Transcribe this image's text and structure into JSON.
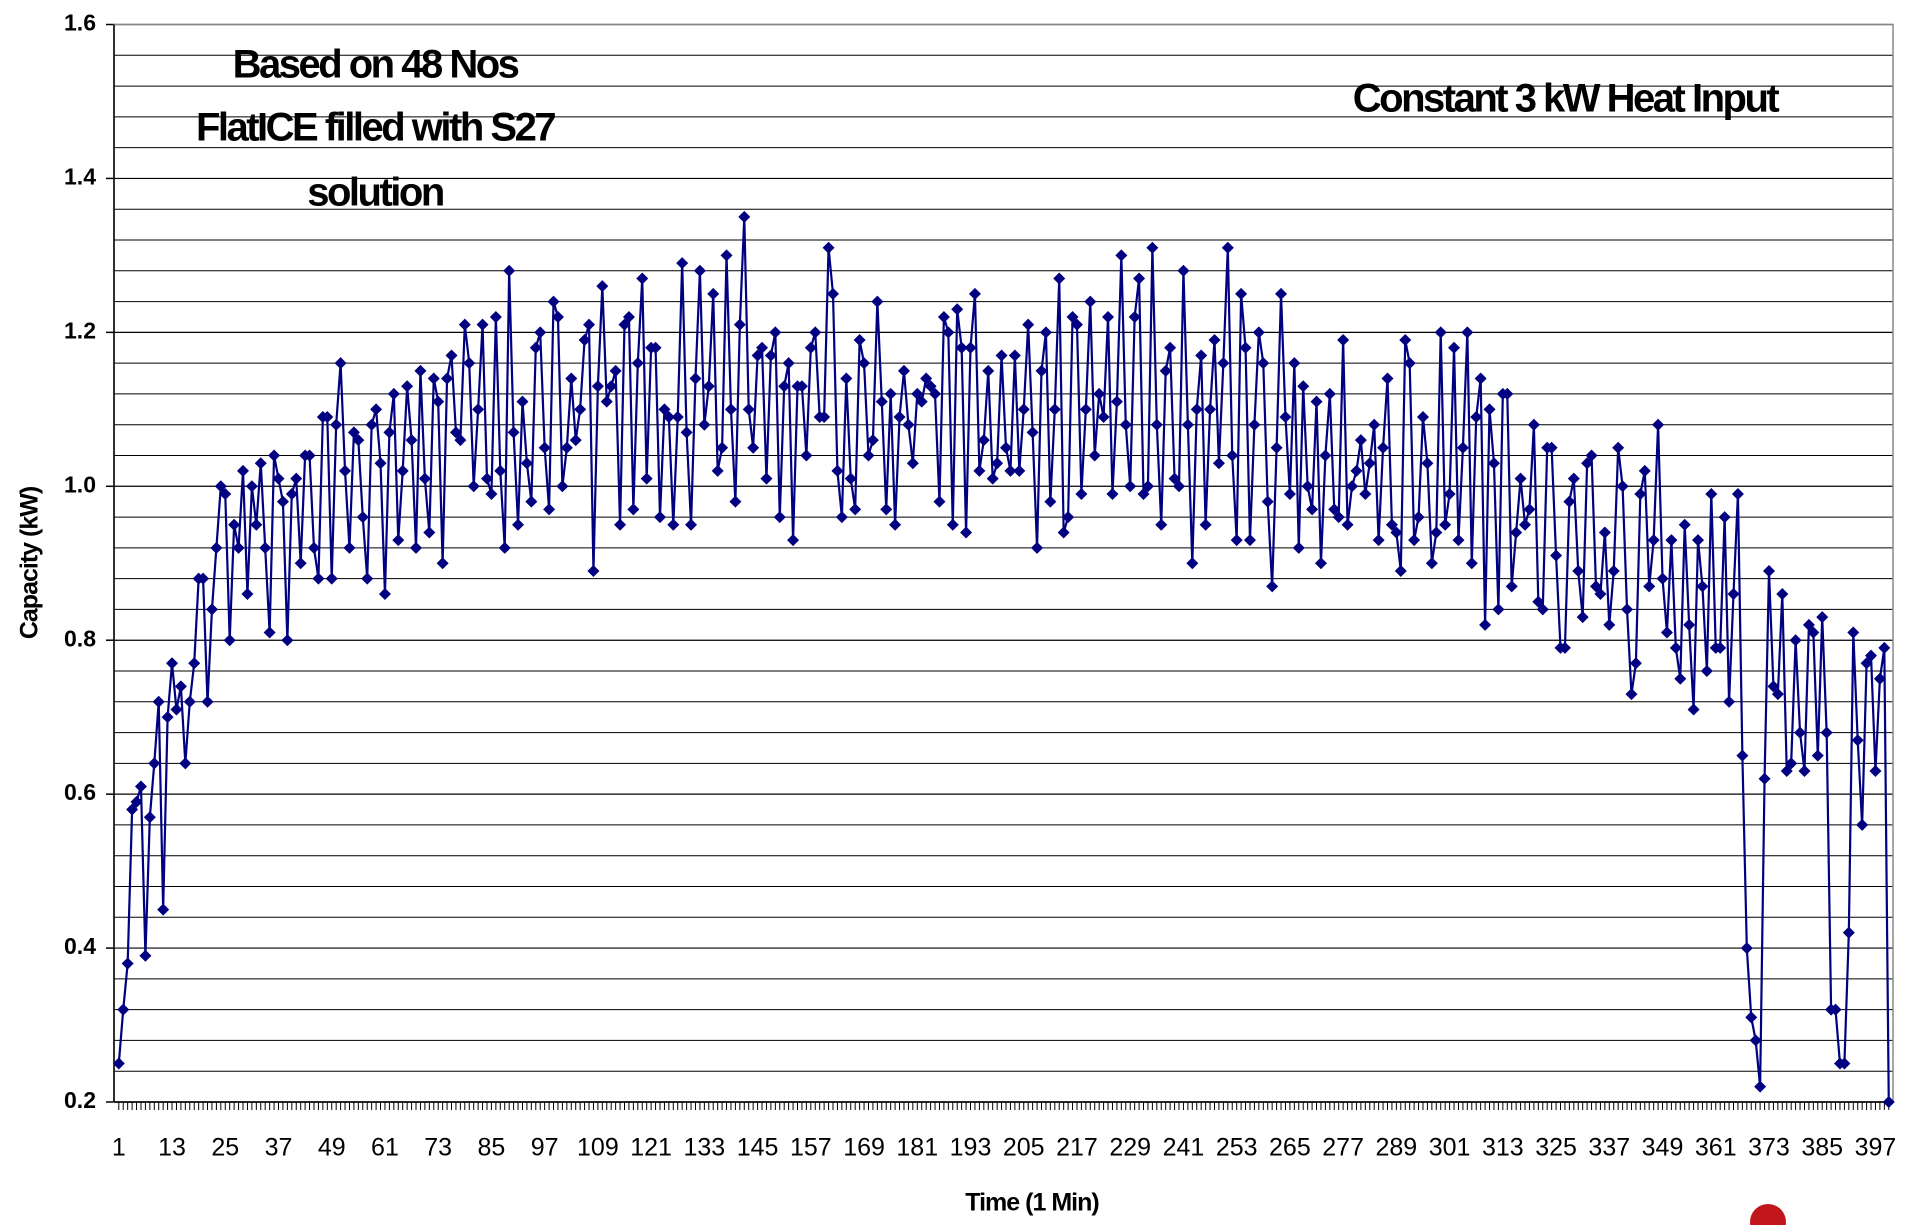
{
  "chart_data": {
    "type": "line",
    "annotations": [
      "Based on 48 Nos",
      "FlatICE filled with S27",
      "solution",
      "Constant 3 kW Heat Input"
    ],
    "x_label": "Time (1 Min)",
    "y_label": "Capacity (kW)",
    "ylim": [
      0.2,
      1.6
    ],
    "yticks": [
      0.2,
      0.4,
      0.6,
      0.8,
      {
        "value": 1,
        "label": "1.0"
      },
      1.2,
      1.4,
      1.6
    ],
    "minor_yticks": [
      0.24,
      0.28,
      0.32,
      0.36,
      0.44,
      0.48,
      0.52,
      0.56,
      0.64,
      0.68,
      0.72,
      0.76,
      0.84,
      0.88,
      0.92,
      0.96,
      1.04,
      1.08,
      1.12,
      1.16,
      1.24,
      1.28,
      1.32,
      1.36,
      1.44,
      1.48,
      1.52,
      1.56
    ],
    "grid": true,
    "categories": [
      1,
      null,
      null,
      null,
      null,
      null,
      null,
      null,
      null,
      null,
      null,
      null,
      13,
      null,
      null,
      null,
      null,
      null,
      null,
      null,
      null,
      null,
      null,
      null,
      25,
      null,
      null,
      null,
      null,
      null,
      null,
      null,
      null,
      null,
      null,
      null,
      37,
      null,
      null,
      null,
      null,
      null,
      null,
      null,
      null,
      null,
      null,
      null,
      49,
      null,
      null,
      null,
      null,
      null,
      null,
      null,
      null,
      null,
      null,
      null,
      61,
      null,
      null,
      null,
      null,
      null,
      null,
      null,
      null,
      null,
      null,
      null,
      73,
      null,
      null,
      null,
      null,
      null,
      null,
      null,
      null,
      null,
      null,
      null,
      85,
      null,
      null,
      null,
      null,
      null,
      null,
      null,
      null,
      null,
      null,
      null,
      97,
      null,
      null,
      null,
      null,
      null,
      null,
      null,
      null,
      null,
      null,
      null,
      109,
      null,
      null,
      null,
      null,
      null,
      null,
      null,
      null,
      null,
      null,
      null,
      121,
      null,
      null,
      null,
      null,
      null,
      null,
      null,
      null,
      null,
      null,
      null,
      133,
      null,
      null,
      null,
      null,
      null,
      null,
      null,
      null,
      null,
      null,
      null,
      145,
      null,
      null,
      null,
      null,
      null,
      null,
      null,
      null,
      null,
      null,
      null,
      157,
      null,
      null,
      null,
      null,
      null,
      null,
      null,
      null,
      null,
      null,
      null,
      169,
      null,
      null,
      null,
      null,
      null,
      null,
      null,
      null,
      null,
      null,
      null,
      181,
      null,
      null,
      null,
      null,
      null,
      null,
      null,
      null,
      null,
      null,
      null,
      193,
      null,
      null,
      null,
      null,
      null,
      null,
      null,
      null,
      null,
      null,
      null,
      205,
      null,
      null,
      null,
      null,
      null,
      null,
      null,
      null,
      null,
      null,
      null,
      217,
      null,
      null,
      null,
      null,
      null,
      null,
      null,
      null,
      null,
      null,
      null,
      229,
      null,
      null,
      null,
      null,
      null,
      null,
      null,
      null,
      null,
      null,
      null,
      241,
      null,
      null,
      null,
      null,
      null,
      null,
      null,
      null,
      null,
      null,
      null,
      253,
      null,
      null,
      null,
      null,
      null,
      null,
      null,
      null,
      null,
      null,
      null,
      265,
      null,
      null,
      null,
      null,
      null,
      null,
      null,
      null,
      null,
      null,
      null,
      277,
      null,
      null,
      null,
      null,
      null,
      null,
      null,
      null,
      null,
      null,
      null,
      289,
      null,
      null,
      null,
      null,
      null,
      null,
      null,
      null,
      null,
      null,
      null,
      301,
      null,
      null,
      null,
      null,
      null,
      null,
      null,
      null,
      null,
      null,
      null,
      313,
      null,
      null,
      null,
      null,
      null,
      null,
      null,
      null,
      null,
      null,
      null,
      325,
      null,
      null,
      null,
      null,
      null,
      null,
      null,
      null,
      null,
      null,
      null,
      337,
      null,
      null,
      null,
      null,
      null,
      null,
      null,
      null,
      null,
      null,
      null,
      349,
      null,
      null,
      null,
      null,
      null,
      null,
      null,
      null,
      null,
      null,
      null,
      361,
      null,
      null,
      null,
      null,
      null,
      null,
      null,
      null,
      null,
      null,
      null,
      373,
      null,
      null,
      null,
      null,
      null,
      null,
      null,
      null,
      null,
      null,
      null,
      385,
      null,
      null,
      null,
      null,
      null,
      null,
      null,
      null,
      null,
      null,
      null,
      397,
      null,
      null,
      null
    ],
    "series": [
      {
        "color": "#000080",
        "values": [
          0.25,
          0.32,
          0.38,
          0.58,
          0.59,
          0.61,
          0.39,
          0.57,
          0.64,
          0.72,
          0.45,
          0.7,
          0.77,
          0.71,
          0.74,
          0.64,
          0.72,
          0.77,
          0.88,
          0.88,
          0.72,
          0.84,
          0.92,
          1.0,
          0.99,
          0.8,
          0.95,
          0.92,
          1.02,
          0.86,
          1.0,
          0.95,
          1.03,
          0.92,
          0.81,
          1.04,
          1.01,
          0.98,
          0.8,
          0.99,
          1.01,
          0.9,
          1.04,
          1.04,
          0.92,
          0.88,
          1.09,
          1.09,
          0.88,
          1.08,
          1.16,
          1.02,
          0.92,
          1.07,
          1.06,
          0.96,
          0.88,
          1.08,
          1.1,
          1.03,
          0.86,
          1.07,
          1.12,
          0.93,
          1.02,
          1.13,
          1.06,
          0.92,
          1.15,
          1.01,
          0.94,
          1.14,
          1.11,
          0.9,
          1.14,
          1.17,
          1.07,
          1.06,
          1.21,
          1.16,
          1.0,
          1.1,
          1.21,
          1.01,
          0.99,
          1.22,
          1.02,
          0.92,
          1.28,
          1.07,
          0.95,
          1.11,
          1.03,
          0.98,
          1.18,
          1.2,
          1.05,
          0.97,
          1.24,
          1.22,
          1.0,
          1.05,
          1.14,
          1.06,
          1.1,
          1.19,
          1.21,
          0.89,
          1.13,
          1.26,
          1.11,
          1.13,
          1.15,
          0.95,
          1.21,
          1.22,
          0.97,
          1.16,
          1.27,
          1.01,
          1.18,
          1.18,
          0.96,
          1.1,
          1.09,
          0.95,
          1.09,
          1.29,
          1.07,
          0.95,
          1.14,
          1.28,
          1.08,
          1.13,
          1.25,
          1.02,
          1.05,
          1.3,
          1.1,
          0.98,
          1.21,
          1.35,
          1.1,
          1.05,
          1.17,
          1.18,
          1.01,
          1.17,
          1.2,
          0.96,
          1.13,
          1.16,
          0.93,
          1.13,
          1.13,
          1.04,
          1.18,
          1.2,
          1.09,
          1.09,
          1.31,
          1.25,
          1.02,
          0.96,
          1.14,
          1.01,
          0.97,
          1.19,
          1.16,
          1.04,
          1.06,
          1.24,
          1.11,
          0.97,
          1.12,
          0.95,
          1.09,
          1.15,
          1.08,
          1.03,
          1.12,
          1.11,
          1.14,
          1.13,
          1.12,
          0.98,
          1.22,
          1.2,
          0.95,
          1.23,
          1.18,
          0.94,
          1.18,
          1.25,
          1.02,
          1.06,
          1.15,
          1.01,
          1.03,
          1.17,
          1.05,
          1.02,
          1.17,
          1.02,
          1.1,
          1.21,
          1.07,
          0.92,
          1.15,
          1.2,
          0.98,
          1.1,
          1.27,
          0.94,
          0.96,
          1.22,
          1.21,
          0.99,
          1.1,
          1.24,
          1.04,
          1.12,
          1.09,
          1.22,
          0.99,
          1.11,
          1.3,
          1.08,
          1.0,
          1.22,
          1.27,
          0.99,
          1.0,
          1.31,
          1.08,
          0.95,
          1.15,
          1.18,
          1.01,
          1.0,
          1.28,
          1.08,
          0.9,
          1.1,
          1.17,
          0.95,
          1.1,
          1.19,
          1.03,
          1.16,
          1.31,
          1.04,
          0.93,
          1.25,
          1.18,
          0.93,
          1.08,
          1.2,
          1.16,
          0.98,
          0.87,
          1.05,
          1.25,
          1.09,
          0.99,
          1.16,
          0.92,
          1.13,
          1.0,
          0.97,
          1.11,
          0.9,
          1.04,
          1.12,
          0.97,
          0.96,
          1.19,
          0.95,
          1.0,
          1.02,
          1.06,
          0.99,
          1.03,
          1.08,
          0.93,
          1.05,
          1.14,
          0.95,
          0.94,
          0.89,
          1.19,
          1.16,
          0.93,
          0.96,
          1.09,
          1.03,
          0.9,
          0.94,
          1.2,
          0.95,
          0.99,
          1.18,
          0.93,
          1.05,
          1.2,
          0.9,
          1.09,
          1.14,
          0.82,
          1.1,
          1.03,
          0.84,
          1.12,
          1.12,
          0.87,
          0.94,
          1.01,
          0.95,
          0.97,
          1.08,
          0.85,
          0.84,
          1.05,
          1.05,
          0.91,
          0.79,
          0.79,
          0.98,
          1.01,
          0.89,
          0.83,
          1.03,
          1.04,
          0.87,
          0.86,
          0.94,
          0.82,
          0.89,
          1.05,
          1.0,
          0.84,
          0.73,
          0.77,
          0.99,
          1.02,
          0.87,
          0.93,
          1.08,
          0.88,
          0.81,
          0.93,
          0.79,
          0.75,
          0.95,
          0.82,
          0.71,
          0.93,
          0.87,
          0.76,
          0.99,
          0.79,
          0.79,
          0.96,
          0.72,
          0.86,
          0.99,
          0.65,
          0.4,
          0.31,
          0.28,
          0.22,
          0.62,
          0.89,
          0.74,
          0.73,
          0.86,
          0.63,
          0.64,
          0.8,
          0.68,
          0.63,
          0.82,
          0.81,
          0.65,
          0.83,
          0.68,
          0.32,
          0.32,
          0.25,
          0.25,
          0.42,
          0.81,
          0.67,
          0.56,
          0.77,
          0.78,
          0.63,
          0.75,
          0.79,
          0.2
        ]
      }
    ]
  }
}
